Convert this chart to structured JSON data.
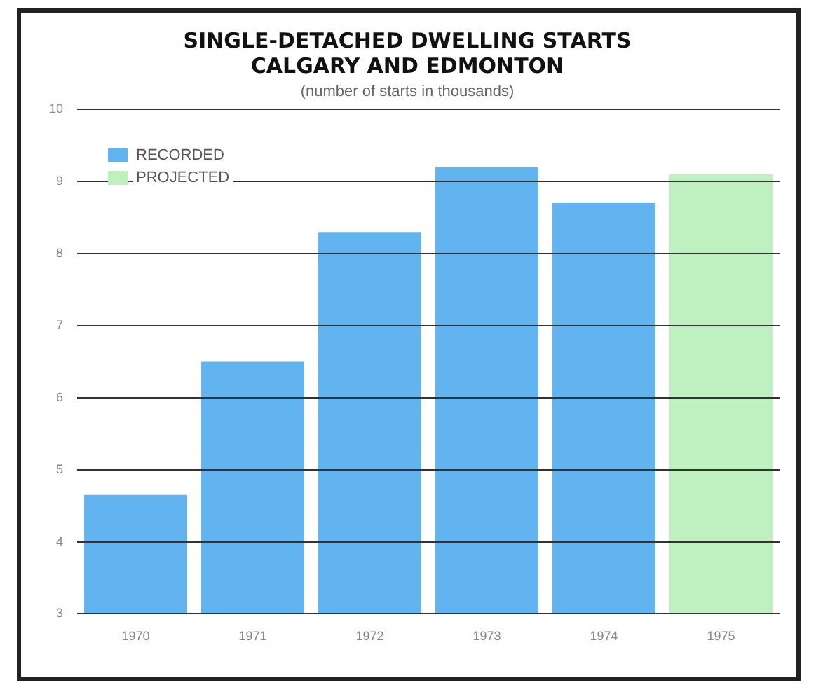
{
  "chart_data": {
    "type": "bar",
    "title": [
      "SINGLE-DETACHED DWELLING STARTS",
      "CALGARY AND EDMONTON"
    ],
    "subtitle": "(number of starts in thousands)",
    "categories": [
      "1970",
      "1971",
      "1972",
      "1973",
      "1974",
      "1975"
    ],
    "series": [
      {
        "name": "RECORDED",
        "color": "#62b4f0",
        "values": [
          4.65,
          6.5,
          8.3,
          9.2,
          8.7,
          null
        ]
      },
      {
        "name": "PROJECTED",
        "color": "#bff0c0",
        "values": [
          null,
          null,
          null,
          null,
          null,
          9.1
        ]
      }
    ],
    "stacked": true,
    "ylim": [
      3,
      10
    ],
    "yticks": [
      3,
      4,
      5,
      6,
      7,
      8,
      9,
      10
    ],
    "grid": "y",
    "legend": "top left"
  }
}
